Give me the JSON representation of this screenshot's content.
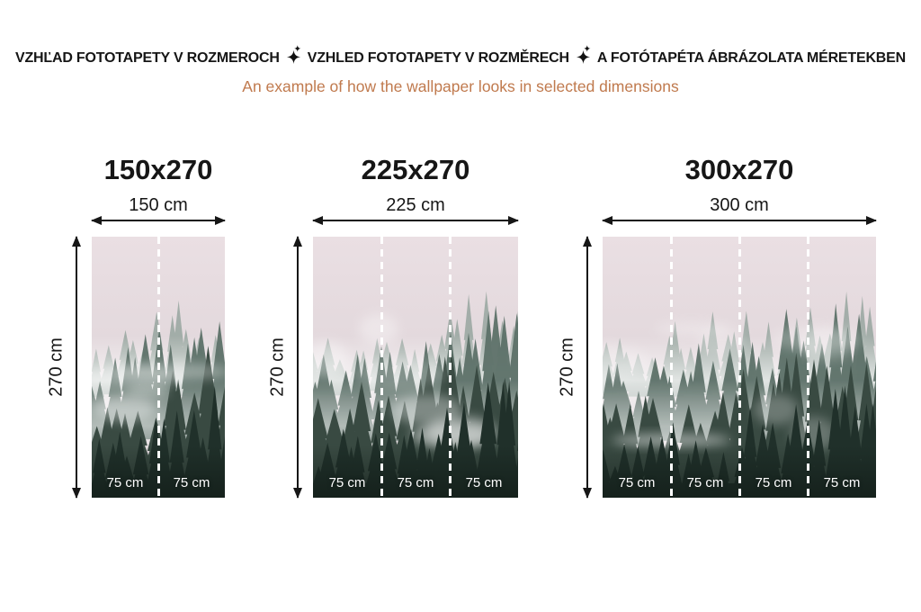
{
  "header": {
    "title_parts": [
      "VZHĽAD FOTOTAPETY V ROZMEROCH",
      "VZHLED FOTOTAPETY V ROZMĚRECH",
      "A FOTÓTAPÉTA ÁBRÁZOLATA MÉRETEKBEN"
    ],
    "separator_icon": "sparkle-icon",
    "title_color": "#161616",
    "subtitle": "An example of how the wallpaper looks in selected dimensions",
    "subtitle_color": "#c07a4e"
  },
  "panels": [
    {
      "title": "150x270",
      "width_label": "150 cm",
      "height_label": "270 cm",
      "strips": [
        "75 cm",
        "75 cm"
      ]
    },
    {
      "title": "225x270",
      "width_label": "225 cm",
      "height_label": "270 cm",
      "strips": [
        "75 cm",
        "75 cm",
        "75 cm"
      ]
    },
    {
      "title": "300x270",
      "width_label": "300 cm",
      "height_label": "270 cm",
      "strips": [
        "75 cm",
        "75 cm",
        "75 cm",
        "75 cm"
      ]
    }
  ],
  "measure": {
    "arrow_color": "#161616"
  },
  "forest_palette": {
    "sky_top": "#eadfe3",
    "sky_bottom": "#d8cfd3",
    "trees_far": "#93a39c",
    "trees_mid": "#5d7169",
    "trees_near": "#394a42",
    "trees_front": "#20302a",
    "fog": "#ffffff",
    "divider_color": "#ffffff",
    "strip_label_color": "#ffffff"
  }
}
